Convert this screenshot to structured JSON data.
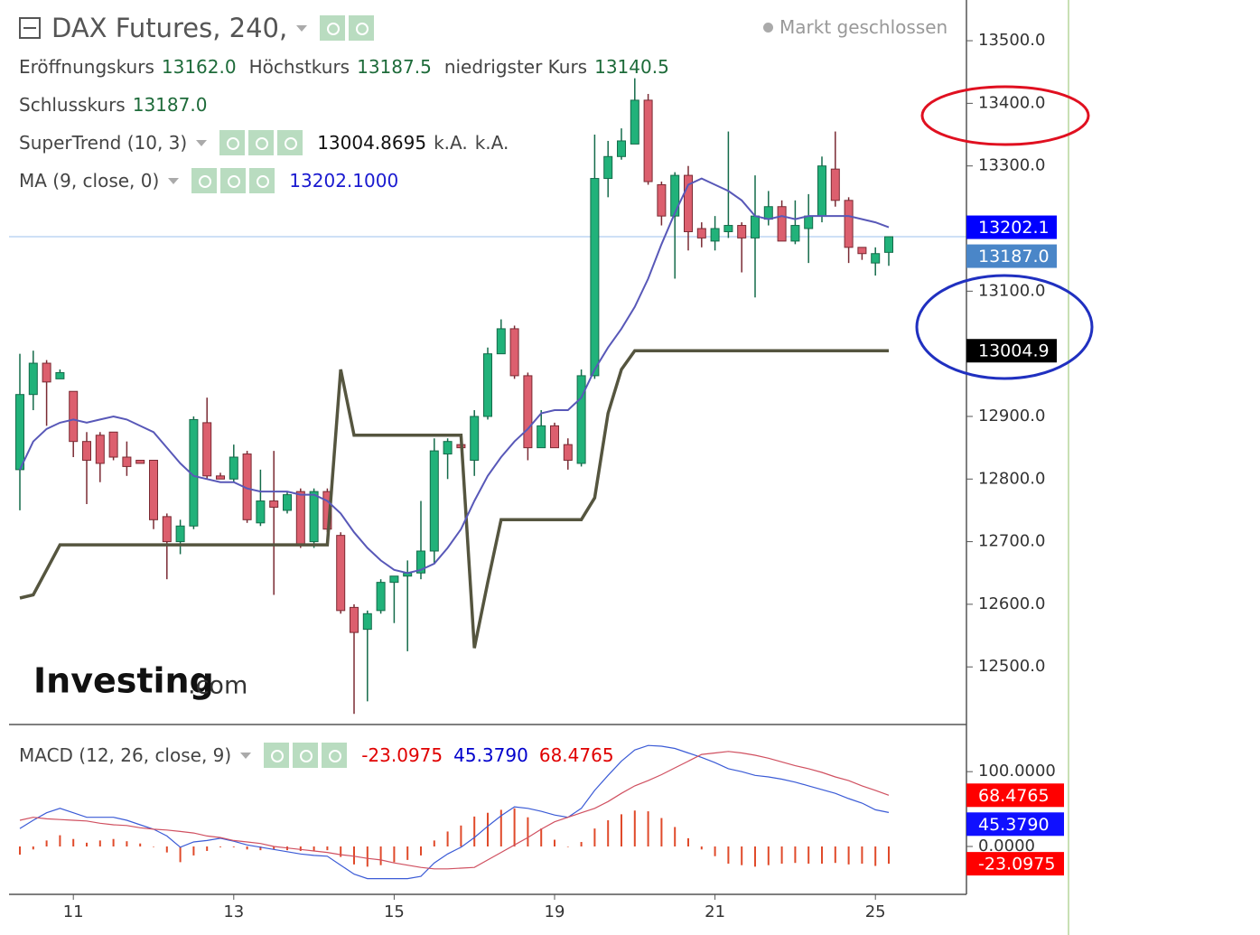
{
  "chart_data": [
    {
      "type": "candlestick",
      "title": "DAX Futures, 240,",
      "status": "Markt geschlossen",
      "legend": [
        {
          "name": "Eröffnungskurs",
          "value": "13162.0"
        },
        {
          "name": "Höchstkurs",
          "value": "13187.5"
        },
        {
          "name": "niedrigster Kurs",
          "value": "13140.5"
        },
        {
          "name": "Schlusskurs",
          "value": "13187.0"
        }
      ],
      "watermark": {
        "brand": "Investing",
        "suffix": ".com"
      },
      "up_color": "#21b27a",
      "down_color": "#dc5f6e",
      "open": [
        12815,
        12935,
        12985,
        12960,
        12940,
        12860,
        12870,
        12875,
        12835,
        12830,
        12830,
        12740,
        12700,
        12725,
        12890,
        12805,
        12800,
        12840,
        12730,
        12765,
        12750,
        12780,
        12700,
        12780,
        12710,
        12595,
        12560,
        12590,
        12635,
        12645,
        12650,
        12685,
        12840,
        12855,
        12830,
        12900,
        13000,
        13040,
        12965,
        12850,
        12885,
        12855,
        12825,
        12965,
        13280,
        13315,
        13335,
        13405,
        13270,
        13220,
        13285,
        13200,
        13180,
        13195,
        13205,
        13185,
        13215,
        13235,
        13180,
        13200,
        13220,
        13295,
        13245,
        13170,
        13145,
        13162
      ],
      "high": [
        13000,
        13005,
        12990,
        12975,
        12940,
        12875,
        12875,
        12875,
        12860,
        12830,
        12830,
        12745,
        12735,
        12900,
        12930,
        12810,
        12855,
        12845,
        12815,
        12845,
        12780,
        12785,
        12785,
        12785,
        12715,
        12600,
        12590,
        12640,
        12645,
        12670,
        12765,
        12865,
        12865,
        12855,
        12910,
        13010,
        13055,
        13045,
        12970,
        12910,
        12890,
        12865,
        12975,
        13350,
        13340,
        13360,
        13440,
        13415,
        13275,
        13290,
        13300,
        13210,
        13220,
        13355,
        13210,
        13285,
        13260,
        13245,
        13245,
        13255,
        13315,
        13355,
        13250,
        13170,
        13170,
        13187.5
      ],
      "low": [
        12750,
        12910,
        12885,
        12960,
        12835,
        12760,
        12795,
        12830,
        12805,
        12825,
        12720,
        12640,
        12680,
        12720,
        12800,
        12800,
        12795,
        12730,
        12725,
        12615,
        12745,
        12690,
        12690,
        12715,
        12585,
        12425,
        12445,
        12585,
        12570,
        12525,
        12640,
        12665,
        12800,
        12850,
        12805,
        12895,
        13000,
        12960,
        12830,
        12850,
        12850,
        12815,
        12820,
        12960,
        13250,
        13310,
        13335,
        13270,
        13205,
        13120,
        13165,
        13170,
        13165,
        13185,
        13130,
        13090,
        13205,
        13180,
        13175,
        13145,
        13210,
        13235,
        13145,
        13150,
        13125,
        13140.5
      ],
      "close": [
        12935,
        12985,
        12955,
        12970,
        12860,
        12830,
        12825,
        12835,
        12820,
        12825,
        12735,
        12700,
        12725,
        12895,
        12805,
        12800,
        12835,
        12735,
        12765,
        12755,
        12775,
        12695,
        12780,
        12720,
        12590,
        12555,
        12585,
        12635,
        12645,
        12650,
        12685,
        12845,
        12860,
        12850,
        12900,
        13000,
        13040,
        12965,
        12850,
        12885,
        12850,
        12830,
        12965,
        13280,
        13315,
        13340,
        13405,
        13275,
        13220,
        13285,
        13195,
        13185,
        13200,
        13205,
        13185,
        13220,
        13235,
        13180,
        13205,
        13220,
        13300,
        13245,
        13170,
        13160,
        13160,
        13187
      ],
      "studies": [
        {
          "name": "SuperTrend (10, 3)",
          "color": "#55553f",
          "readout": [
            "13004.8695",
            "k.A.",
            "k.A."
          ],
          "values": [
            12610,
            12615,
            12655,
            12695,
            12695,
            12695,
            12695,
            12695,
            12695,
            12695,
            12695,
            12695,
            12695,
            12695,
            12695,
            12695,
            12695,
            12695,
            12695,
            12695,
            12695,
            12695,
            12695,
            12695,
            12975,
            12870,
            12870,
            12870,
            12870,
            12870,
            12870,
            12870,
            12870,
            12870,
            12530,
            12635,
            12735,
            12735,
            12735,
            12735,
            12735,
            12735,
            12735,
            12770,
            12905,
            12975,
            13004.9,
            13004.9,
            13004.9,
            13004.9,
            13004.9,
            13004.9,
            13004.9,
            13004.9,
            13004.9,
            13004.9,
            13004.9,
            13004.9,
            13004.9,
            13004.9,
            13004.9,
            13004.9,
            13004.9,
            13004.9,
            13004.9,
            13004.8695
          ]
        },
        {
          "name": "MA (9, close, 0)",
          "color": "#5858b8",
          "readout": [
            "13202.1000"
          ],
          "values": [
            12815,
            12860,
            12880,
            12890,
            12895,
            12890,
            12895,
            12900,
            12895,
            12885,
            12875,
            12850,
            12825,
            12805,
            12800,
            12795,
            12795,
            12785,
            12780,
            12780,
            12780,
            12775,
            12775,
            12765,
            12745,
            12715,
            12690,
            12670,
            12655,
            12650,
            12655,
            12665,
            12690,
            12720,
            12765,
            12805,
            12835,
            12860,
            12880,
            12905,
            12910,
            12910,
            12930,
            12975,
            13010,
            13040,
            13075,
            13120,
            13175,
            13225,
            13270,
            13280,
            13270,
            13260,
            13245,
            13220,
            13215,
            13220,
            13215,
            13220,
            13220,
            13220,
            13220,
            13215,
            13210,
            13202.1
          ]
        }
      ],
      "last_price_line": true,
      "price_tags": [
        {
          "value": 13202.1,
          "label": "13202.1",
          "color": "#0000ff"
        },
        {
          "value": 13187,
          "label": "13187.0",
          "color": "#4a86c8"
        },
        {
          "value": 13004.9,
          "label": "13004.9",
          "color": "#000000"
        }
      ],
      "ylim": [
        12408,
        13565
      ],
      "yticks": [
        {
          "value": 12500,
          "label": "12500.0"
        },
        {
          "value": 12600,
          "label": "12600.0"
        },
        {
          "value": 12700,
          "label": "12700.0"
        },
        {
          "value": 12800,
          "label": "12800.0"
        },
        {
          "value": 12900,
          "label": "12900.0"
        },
        {
          "value": 13000,
          "label": "13000.0"
        },
        {
          "value": 13100,
          "label": "13100.0"
        },
        {
          "value": 13200,
          "label": "13200.0"
        },
        {
          "value": 13300,
          "label": "13300.0"
        },
        {
          "value": 13400,
          "label": "13400.0"
        },
        {
          "value": 13500,
          "label": "13500.0"
        }
      ]
    },
    {
      "type": "macd",
      "title": "MACD (12, 26, close, 9)",
      "readout": [
        {
          "text": "-23.0975",
          "color": "#e00000"
        },
        {
          "text": "45.3790",
          "color": "#0000cc"
        },
        {
          "text": "68.4765",
          "color": "#e00000"
        }
      ],
      "categories": [
        null,
        null,
        null,
        null,
        "11",
        null,
        null,
        null,
        null,
        null,
        null,
        null,
        null,
        null,
        null,
        null,
        "13",
        null,
        null,
        null,
        null,
        null,
        null,
        null,
        null,
        null,
        null,
        null,
        "15",
        null,
        null,
        null,
        null,
        null,
        null,
        null,
        null,
        null,
        null,
        null,
        "19",
        null,
        null,
        null,
        null,
        null,
        null,
        null,
        null,
        null,
        null,
        null,
        "21",
        null,
        null,
        null,
        null,
        null,
        null,
        null,
        null,
        null,
        null,
        null,
        "25",
        null
      ],
      "series": [
        {
          "type": "bar",
          "color": "#e04a2a",
          "values": [
            -11,
            -4,
            8,
            15,
            10,
            5,
            8,
            10,
            7,
            4,
            0,
            -8,
            -21,
            -12,
            -6,
            -1,
            -1,
            -4,
            -5,
            -4,
            -5,
            -6,
            -6,
            -5,
            -14,
            -24,
            -27,
            -25,
            -21,
            -18,
            -12,
            8,
            20,
            28,
            40,
            45,
            49,
            51,
            39,
            24,
            9,
            0,
            6,
            24,
            35,
            43,
            48,
            47,
            38,
            26,
            11,
            -4,
            -13,
            -23,
            -25,
            -27,
            -25,
            -23,
            -22,
            -23,
            -23,
            -22,
            -24,
            -23,
            -26,
            -23.0975
          ]
        },
        {
          "type": "line",
          "color": "#3b5bd6",
          "values": [
            24,
            35,
            45,
            51,
            45,
            39,
            39,
            39,
            35,
            29,
            23,
            14,
            -1,
            6,
            8,
            11,
            7,
            2,
            -1,
            -4,
            -7,
            -10,
            -12,
            -13,
            -25,
            -37,
            -43,
            -43,
            -43,
            -43,
            -40,
            -22,
            -10,
            -1,
            12,
            27,
            41,
            53,
            51,
            47,
            42,
            39,
            51,
            75,
            95,
            114,
            129,
            135,
            134,
            131,
            125,
            119,
            112,
            104,
            100,
            95,
            93,
            90,
            86,
            81,
            76,
            71,
            64,
            58,
            49,
            45.379
          ]
        },
        {
          "type": "line",
          "color": "#d05060",
          "values": [
            35,
            39,
            37,
            36,
            35,
            34,
            31,
            29,
            28,
            25,
            23,
            22,
            20,
            18,
            14,
            12,
            8,
            6,
            4,
            0,
            -2,
            -4,
            -6,
            -8,
            -11,
            -13,
            -16,
            -18,
            -22,
            -25,
            -28,
            -30,
            -30,
            -29,
            -28,
            -18,
            -8,
            2,
            12,
            23,
            33,
            39,
            45,
            51,
            60,
            71,
            81,
            88,
            96,
            105,
            114,
            123,
            125,
            127,
            125,
            122,
            118,
            113,
            108,
            104,
            99,
            93,
            88,
            81,
            75,
            68.4765
          ]
        }
      ],
      "price_tags": [
        {
          "value": 68.4765,
          "label": "68.4765",
          "color": "#ff0000"
        },
        {
          "value": 45.379,
          "label": "45.3790",
          "color": "#1010ff"
        },
        {
          "value": -23.0975,
          "label": "-23.0975",
          "color": "#ff0000"
        }
      ],
      "ylim": [
        -64,
        163
      ],
      "yticks": [
        {
          "value": 0,
          "label": "0.0000"
        },
        {
          "value": 100,
          "label": "100.0000"
        }
      ]
    }
  ]
}
